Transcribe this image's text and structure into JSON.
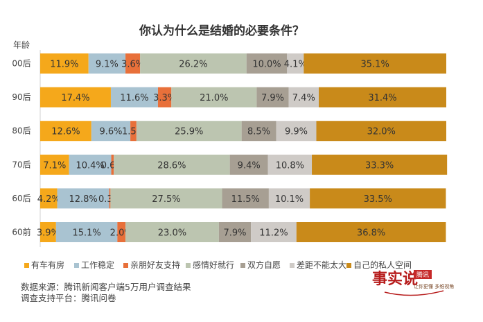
{
  "chart_data": {
    "type": "bar",
    "stacked": true,
    "orientation": "horizontal",
    "title": "你认为什么是结婚的必要条件？",
    "ylabel": "年龄",
    "categories": [
      "00后",
      "90后",
      "80后",
      "70后",
      "60后",
      "60前"
    ],
    "xlim": [
      0,
      100
    ],
    "series": [
      {
        "name": "有车有房",
        "color": "#f5a81b",
        "values": [
          11.9,
          17.4,
          12.6,
          7.1,
          4.2,
          3.9
        ]
      },
      {
        "name": "工作稳定",
        "color": "#a9c3d1",
        "values": [
          9.1,
          11.6,
          9.6,
          10.4,
          12.8,
          15.1
        ]
      },
      {
        "name": "亲朋好友支持",
        "color": "#e8703a",
        "values": [
          3.6,
          3.3,
          1.5,
          0.6,
          0.3,
          2.0
        ]
      },
      {
        "name": "感情好就行",
        "color": "#bcc5b0",
        "values": [
          26.2,
          21.0,
          25.9,
          28.6,
          27.5,
          23.0
        ]
      },
      {
        "name": "双方自愿",
        "color": "#a79f93",
        "values": [
          10.0,
          7.9,
          8.5,
          9.4,
          11.5,
          7.9
        ]
      },
      {
        "name": "差距不能太大",
        "color": "#cfcbc7",
        "values": [
          4.1,
          7.4,
          9.9,
          10.8,
          10.1,
          11.2
        ]
      },
      {
        "name": "自己的私人空间",
        "color": "#c98a1a",
        "values": [
          35.1,
          31.4,
          32.0,
          33.3,
          33.5,
          36.8
        ]
      }
    ],
    "value_labels": [
      [
        "11.9%",
        "9.1%",
        "3.6%",
        "26.2%",
        "10.0%",
        "4.1%",
        "35.1%"
      ],
      [
        "17.4%",
        "11.6%",
        "3.3%",
        "21.0%",
        "7.9%",
        "7.4%",
        "31.4%"
      ],
      [
        "12.6%",
        "9.6%",
        "1.5%",
        "25.9%",
        "8.5%",
        "9.9%",
        "32.0%"
      ],
      [
        "7.1%",
        "10.4%",
        "0.6%",
        "28.6%",
        "9.4%",
        "10.8%",
        "33.3%"
      ],
      [
        "4.2%",
        "12.8%",
        "0.3%",
        "27.5%",
        "11.5%",
        "10.1%",
        "33.5%"
      ],
      [
        "3.9%",
        "15.1%",
        "2.0%",
        "23.0%",
        "7.9%",
        "11.2%",
        "36.8%"
      ]
    ],
    "legend_position": "bottom",
    "grid": false
  },
  "footer": {
    "source": "数据来源：腾讯新闻客户端5万用户调查结果",
    "support": "调查支持平台：腾讯问卷"
  },
  "watermark": {
    "main": "事实说",
    "badge": "腾讯",
    "tagline": "让你更懂 多维视角"
  }
}
